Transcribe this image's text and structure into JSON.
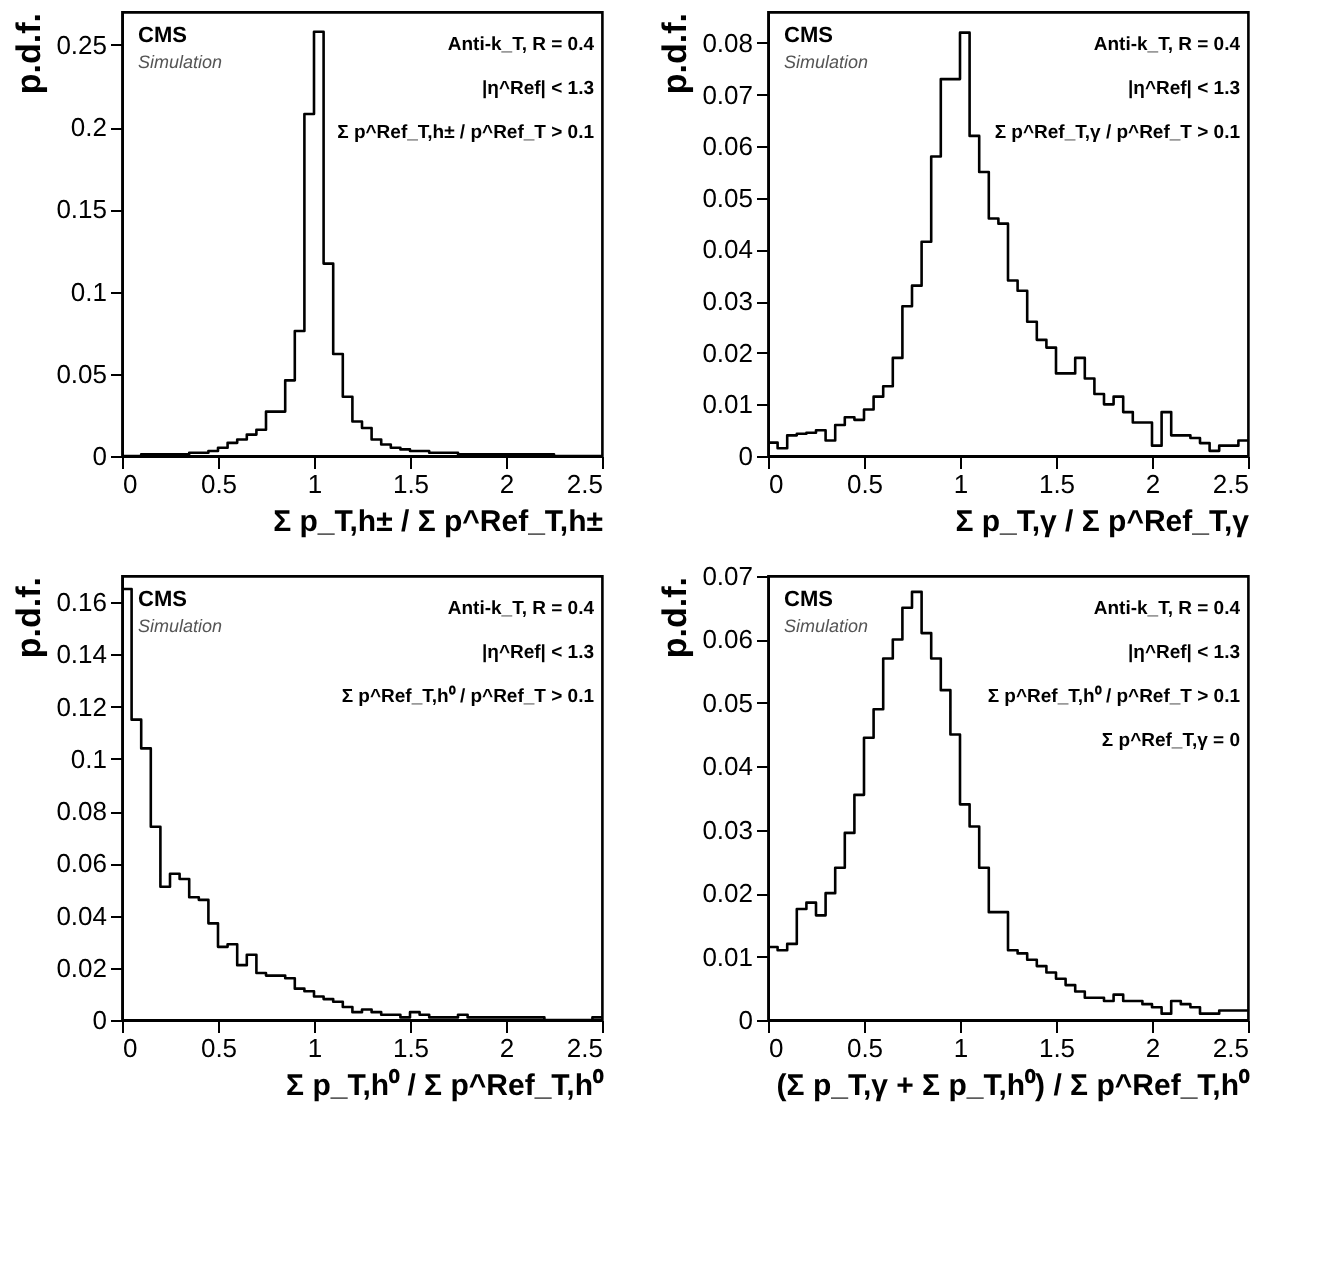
{
  "chart_data": [
    {
      "type": "histogram",
      "color": "#000000",
      "grid": false,
      "ylabel": "p.d.f.",
      "xlabel": "Σ p_T,h± / Σ p^Ref_T,h±",
      "annotations": [
        "CMS",
        "Simulation",
        "Anti-k_T, R = 0.4",
        "|η^Ref| < 1.3",
        "Σ p^Ref_T,h± / p^Ref_T > 0.1"
      ],
      "xlim": [
        0,
        2.5
      ],
      "xticks": [
        0,
        0.5,
        1,
        1.5,
        2,
        2.5
      ],
      "ylim": [
        0,
        0.27
      ],
      "yticks": [
        0,
        0.05,
        0.1,
        0.15,
        0.2,
        0.25
      ],
      "bins": [
        0,
        0.05,
        0.1,
        0.15,
        0.2,
        0.25,
        0.3,
        0.35,
        0.4,
        0.45,
        0.5,
        0.55,
        0.6,
        0.65,
        0.7,
        0.75,
        0.8,
        0.85,
        0.9,
        0.95,
        1,
        1.05,
        1.1,
        1.15,
        1.2,
        1.25,
        1.3,
        1.35,
        1.4,
        1.45,
        1.5,
        1.55,
        1.6,
        1.65,
        1.7,
        1.75,
        1.8,
        1.85,
        1.9,
        1.95,
        2,
        2.05,
        2.1,
        2.15,
        2.2,
        2.25,
        2.3,
        2.35,
        2.4,
        2.45,
        2.5
      ],
      "values": [
        0,
        0,
        0.001,
        0.001,
        0.001,
        0.001,
        0.001,
        0.002,
        0.002,
        0.003,
        0.005,
        0.008,
        0.01,
        0.013,
        0.016,
        0.027,
        0.027,
        0.046,
        0.076,
        0.208,
        0.258,
        0.117,
        0.062,
        0.036,
        0.021,
        0.017,
        0.01,
        0.007,
        0.005,
        0.004,
        0.003,
        0.003,
        0.002,
        0.002,
        0.002,
        0.001,
        0.001,
        0.001,
        0.001,
        0.001,
        0.001,
        0.001,
        0.001,
        0.001,
        0.001,
        0,
        0,
        0,
        0,
        0
      ]
    },
    {
      "type": "histogram",
      "color": "#000000",
      "grid": false,
      "ylabel": "p.d.f.",
      "xlabel": "Σ p_T,γ / Σ p^Ref_T,γ",
      "annotations": [
        "CMS",
        "Simulation",
        "Anti-k_T, R = 0.4",
        "|η^Ref| < 1.3",
        "Σ p^Ref_T,γ / p^Ref_T > 0.1"
      ],
      "xlim": [
        0,
        2.5
      ],
      "xticks": [
        0,
        0.5,
        1,
        1.5,
        2,
        2.5
      ],
      "ylim": [
        0,
        0.086
      ],
      "yticks": [
        0,
        0.01,
        0.02,
        0.03,
        0.04,
        0.05,
        0.06,
        0.07,
        0.08
      ],
      "bins": [
        0,
        0.05,
        0.1,
        0.15,
        0.2,
        0.25,
        0.3,
        0.35,
        0.4,
        0.45,
        0.5,
        0.55,
        0.6,
        0.65,
        0.7,
        0.75,
        0.8,
        0.85,
        0.9,
        0.95,
        1,
        1.05,
        1.1,
        1.15,
        1.2,
        1.25,
        1.3,
        1.35,
        1.4,
        1.45,
        1.5,
        1.55,
        1.6,
        1.65,
        1.7,
        1.75,
        1.8,
        1.85,
        1.9,
        1.95,
        2,
        2.05,
        2.1,
        2.15,
        2.2,
        2.25,
        2.3,
        2.35,
        2.4,
        2.45,
        2.5
      ],
      "values": [
        0.0026,
        0.0015,
        0.004,
        0.0043,
        0.0045,
        0.005,
        0.003,
        0.006,
        0.0075,
        0.007,
        0.009,
        0.0115,
        0.0135,
        0.019,
        0.029,
        0.033,
        0.0415,
        0.058,
        0.073,
        0.073,
        0.082,
        0.062,
        0.055,
        0.046,
        0.045,
        0.034,
        0.032,
        0.026,
        0.0225,
        0.021,
        0.016,
        0.016,
        0.019,
        0.015,
        0.012,
        0.01,
        0.0115,
        0.0085,
        0.0065,
        0.0065,
        0.002,
        0.0085,
        0.004,
        0.004,
        0.0035,
        0.0025,
        0.001,
        0.002,
        0.002,
        0.003
      ]
    },
    {
      "type": "histogram",
      "color": "#000000",
      "grid": false,
      "ylabel": "p.d.f.",
      "xlabel": "Σ p_T,h⁰ / Σ p^Ref_T,h⁰",
      "annotations": [
        "CMS",
        "Simulation",
        "Anti-k_T, R = 0.4",
        "|η^Ref| < 1.3",
        "Σ p^Ref_T,h⁰ / p^Ref_T > 0.1"
      ],
      "xlim": [
        0,
        2.5
      ],
      "xticks": [
        0,
        0.5,
        1,
        1.5,
        2,
        2.5
      ],
      "ylim": [
        0,
        0.17
      ],
      "yticks": [
        0,
        0.02,
        0.04,
        0.06,
        0.08,
        0.1,
        0.12,
        0.14,
        0.16
      ],
      "bins": [
        0,
        0.05,
        0.1,
        0.15,
        0.2,
        0.25,
        0.3,
        0.35,
        0.4,
        0.45,
        0.5,
        0.55,
        0.6,
        0.65,
        0.7,
        0.75,
        0.8,
        0.85,
        0.9,
        0.95,
        1,
        1.05,
        1.1,
        1.15,
        1.2,
        1.25,
        1.3,
        1.35,
        1.4,
        1.45,
        1.5,
        1.55,
        1.6,
        1.65,
        1.7,
        1.75,
        1.8,
        1.85,
        1.9,
        1.95,
        2,
        2.05,
        2.1,
        2.15,
        2.2,
        2.25,
        2.3,
        2.35,
        2.4,
        2.45,
        2.5
      ],
      "values": [
        0.165,
        0.115,
        0.104,
        0.074,
        0.051,
        0.056,
        0.054,
        0.047,
        0.046,
        0.037,
        0.028,
        0.029,
        0.021,
        0.025,
        0.018,
        0.017,
        0.017,
        0.016,
        0.012,
        0.011,
        0.009,
        0.008,
        0.007,
        0.005,
        0.003,
        0.004,
        0.003,
        0.002,
        0.002,
        0.001,
        0.003,
        0.002,
        0.001,
        0.001,
        0.001,
        0.002,
        0.001,
        0.001,
        0.001,
        0.001,
        0.001,
        0.001,
        0.001,
        0.001,
        0,
        0,
        0,
        0,
        0,
        0.001
      ]
    },
    {
      "type": "histogram",
      "color": "#000000",
      "grid": false,
      "ylabel": "p.d.f.",
      "xlabel": "(Σ p_T,γ + Σ p_T,h⁰) / Σ p^Ref_T,h⁰",
      "annotations": [
        "CMS",
        "Simulation",
        "Anti-k_T, R = 0.4",
        "|η^Ref| < 1.3",
        "Σ p^Ref_T,h⁰ / p^Ref_T > 0.1",
        "Σ p^Ref_T,γ = 0"
      ],
      "xlim": [
        0,
        2.5
      ],
      "xticks": [
        0,
        0.5,
        1,
        1.5,
        2,
        2.5
      ],
      "ylim": [
        0,
        0.07
      ],
      "yticks": [
        0,
        0.01,
        0.02,
        0.03,
        0.04,
        0.05,
        0.06,
        0.07
      ],
      "bins": [
        0,
        0.05,
        0.1,
        0.15,
        0.2,
        0.25,
        0.3,
        0.35,
        0.4,
        0.45,
        0.5,
        0.55,
        0.6,
        0.65,
        0.7,
        0.75,
        0.8,
        0.85,
        0.9,
        0.95,
        1,
        1.05,
        1.1,
        1.15,
        1.2,
        1.25,
        1.3,
        1.35,
        1.4,
        1.45,
        1.5,
        1.55,
        1.6,
        1.65,
        1.7,
        1.75,
        1.8,
        1.85,
        1.9,
        1.95,
        2,
        2.05,
        2.1,
        2.15,
        2.2,
        2.25,
        2.3,
        2.35,
        2.4,
        2.45,
        2.5
      ],
      "values": [
        0.0115,
        0.011,
        0.012,
        0.0175,
        0.0185,
        0.0165,
        0.02,
        0.024,
        0.0295,
        0.0355,
        0.0445,
        0.049,
        0.057,
        0.06,
        0.065,
        0.0675,
        0.061,
        0.057,
        0.052,
        0.045,
        0.034,
        0.0305,
        0.024,
        0.017,
        0.017,
        0.011,
        0.0105,
        0.0095,
        0.0085,
        0.0075,
        0.0065,
        0.0055,
        0.0045,
        0.0035,
        0.0035,
        0.003,
        0.004,
        0.003,
        0.003,
        0.0025,
        0.002,
        0.001,
        0.003,
        0.0025,
        0.002,
        0.001,
        0.001,
        0.0015,
        0.0015,
        0.0015
      ]
    }
  ]
}
